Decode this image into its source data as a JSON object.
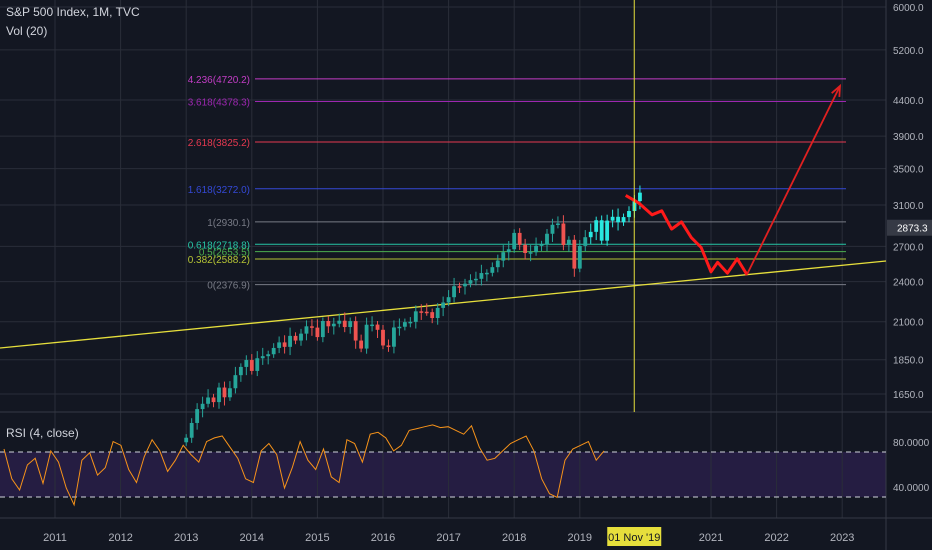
{
  "header": {
    "title": "S&P 500 Index, 1M, TVC",
    "volume": "Vol (20)"
  },
  "rsi_label": "RSI (4, close)",
  "crosshair_date": "01 Nov '19",
  "last_price": "2873.3",
  "colors": {
    "background": "#131722",
    "grid": "#2a2e39",
    "up": "#26a69a",
    "down": "#ef5350",
    "trendline": "#e6df3c",
    "crosshair": "#e6df3c",
    "rsi_line": "#f7931a",
    "rsi_band": "#2a1f4b",
    "projection": "#ff1a1a",
    "uptrend_highlight": "#29e8e0",
    "arrow": "#e02020",
    "price_tag": "#363a45"
  },
  "chart_data": {
    "type": "candlestick",
    "price_axis": {
      "scale": "log",
      "ticks": [
        "6000.0",
        "5200.0",
        "4400.0",
        "3900.0",
        "3500.0",
        "3100.0",
        "2700.0",
        "2400.0",
        "2100.0",
        "1850.0",
        "1650.0"
      ]
    },
    "x_axis": {
      "ticks": [
        "2011",
        "2012",
        "2013",
        "2014",
        "2015",
        "2016",
        "2017",
        "2018",
        "2019",
        "2021",
        "2022",
        "2023"
      ]
    },
    "fib_levels": [
      {
        "label": "4.236(4720.2)",
        "value": 4720.2,
        "color": "#c33dc6"
      },
      {
        "label": "3.618(4378.3)",
        "value": 4378.3,
        "color": "#9c27b0"
      },
      {
        "label": "2.618(3825.2)",
        "value": 3825.2,
        "color": "#e53950"
      },
      {
        "label": "1.618(3272.0)",
        "value": 3272.0,
        "color": "#3449d6"
      },
      {
        "label": "1(2930.1)",
        "value": 2930.1,
        "color": "#787b86"
      },
      {
        "label": "0.618(2718.8)",
        "value": 2718.8,
        "color": "#26c6a6"
      },
      {
        "label": "0.5(2653.5)",
        "value": 2653.5,
        "color": "#4caf50"
      },
      {
        "label": "0.382(2588.2)",
        "value": 2588.2,
        "color": "#b5c435"
      },
      {
        "label": "0(2376.9)",
        "value": 2376.9,
        "color": "#787b86"
      }
    ],
    "monthly_closes": {
      "start": 2013.0,
      "values": [
        1426,
        1498,
        1569,
        1597,
        1631,
        1606,
        1686,
        1632,
        1682,
        1757,
        1806,
        1848,
        1782,
        1859,
        1872,
        1884,
        1924,
        1960,
        1931,
        2003,
        1972,
        2018,
        2068,
        2059,
        1995,
        2105,
        2068,
        2086,
        2107,
        2063,
        2104,
        1972,
        1920,
        2079,
        2080,
        2044,
        1940,
        1932,
        2060,
        2065,
        2097,
        2099,
        2174,
        2171,
        2168,
        2126,
        2199,
        2239,
        2279,
        2364,
        2363,
        2384,
        2412,
        2423,
        2470,
        2472,
        2519,
        2575,
        2648,
        2674,
        2824,
        2714,
        2641,
        2648,
        2705,
        2718,
        2816,
        2902,
        2914,
        2712,
        2760,
        2507,
        2704,
        2784,
        2834,
        2946,
        2752,
        2942,
        2980,
        2926,
        2977,
        3038,
        3141,
        3230
      ]
    },
    "rsi": {
      "levels": {
        "upper": 80,
        "lower": 20
      },
      "ticks": [
        "80.0000",
        "40.0000"
      ]
    }
  }
}
